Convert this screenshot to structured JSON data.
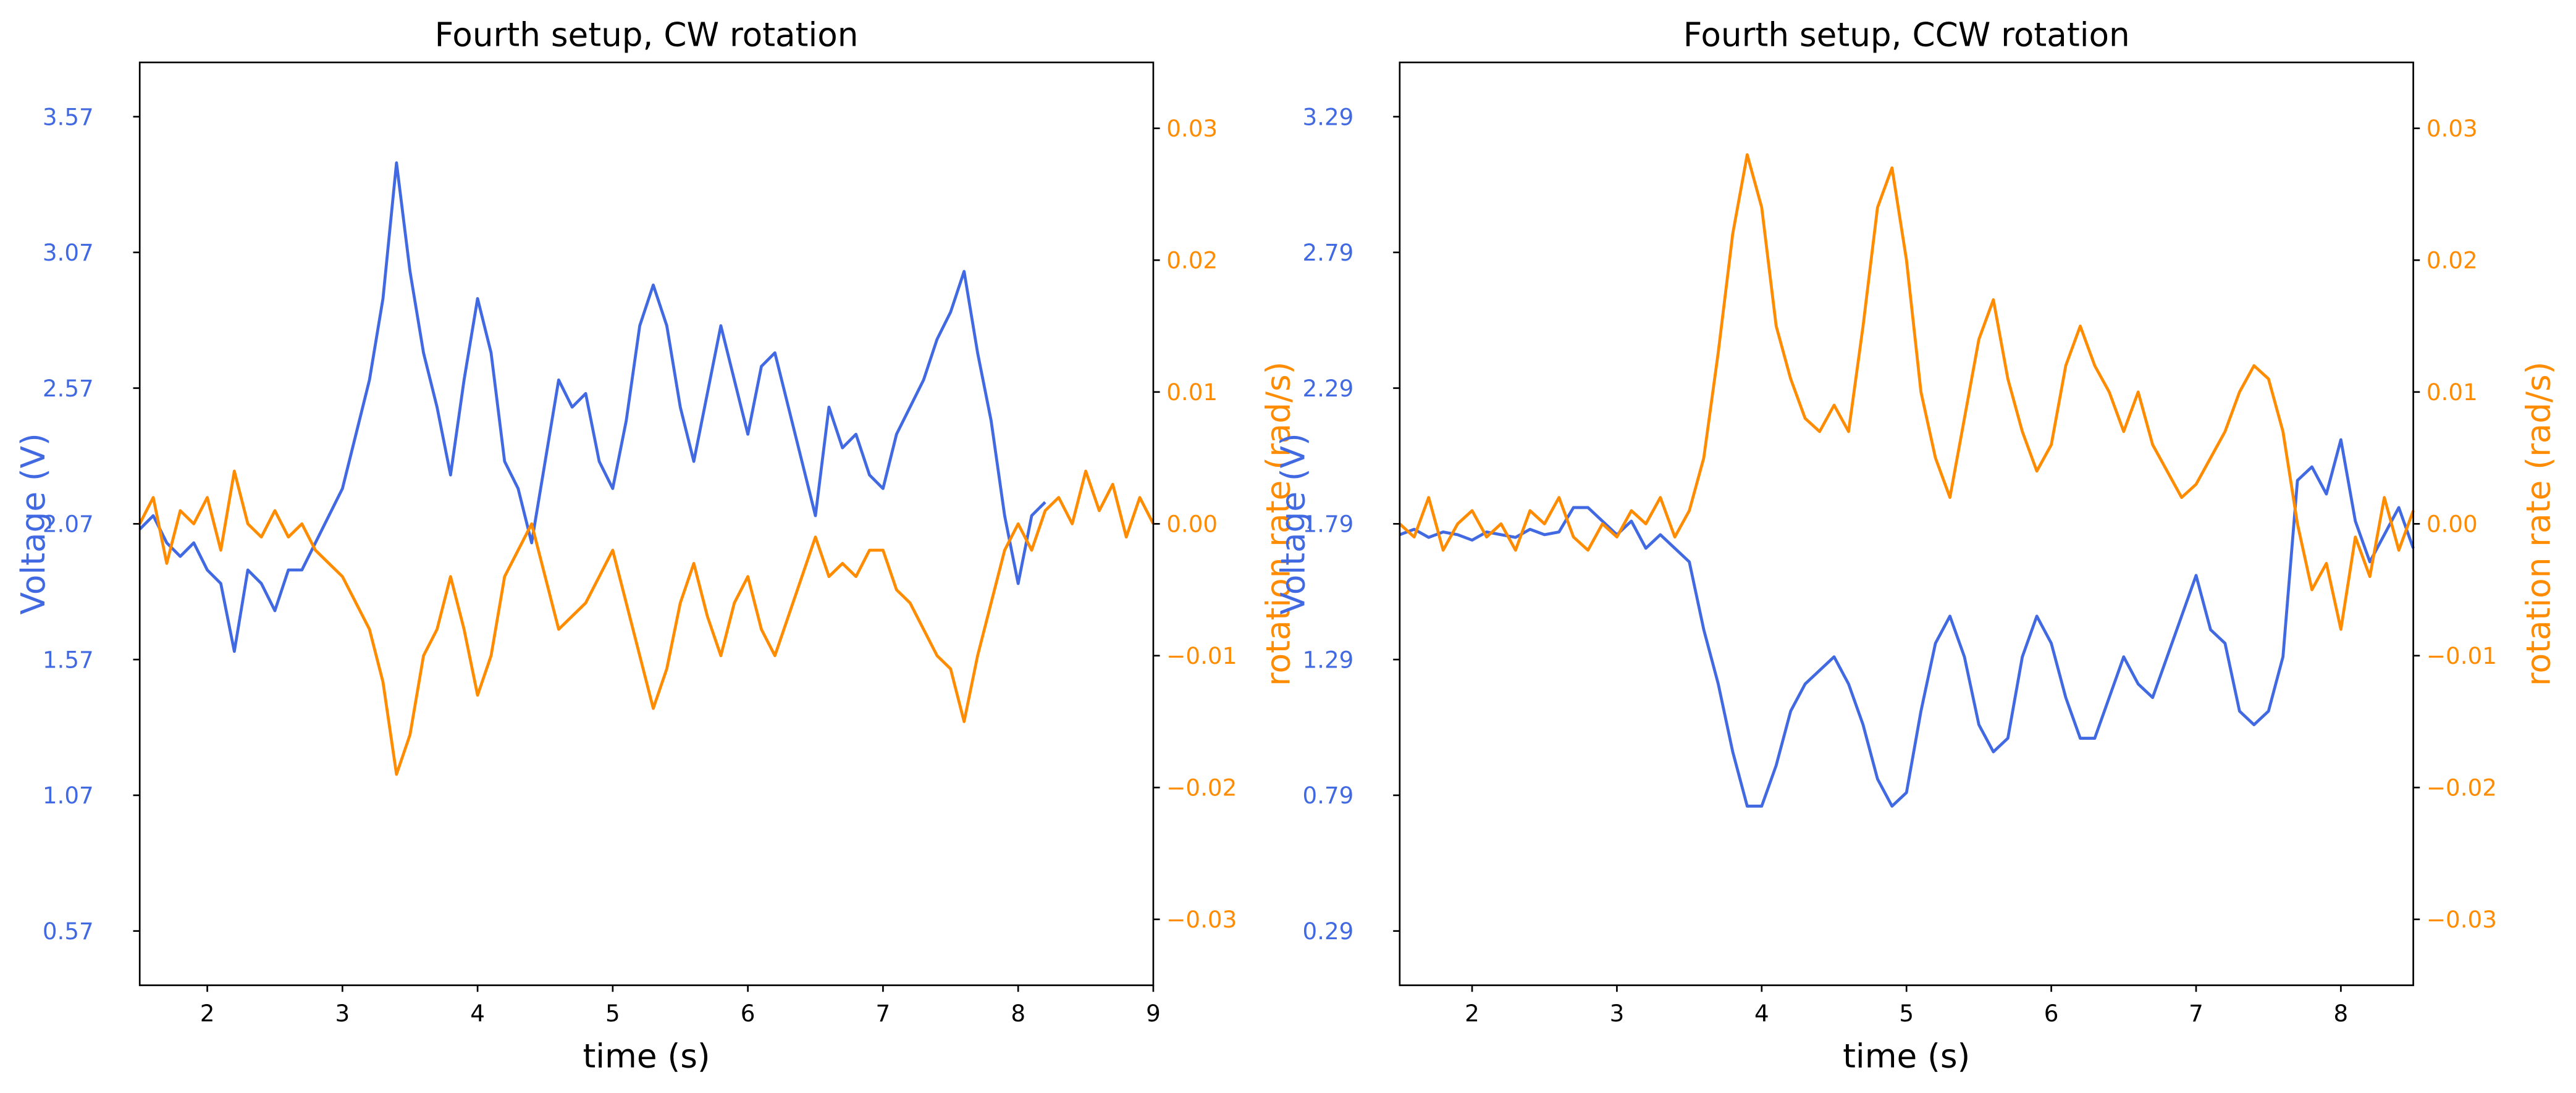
{
  "chart_data": [
    {
      "type": "line",
      "title": "Fourth setup, CW rotation",
      "xlabel": "time (s)",
      "ylabel": "Voltage (V)",
      "y2label": "rotation rate (rad/s)",
      "x": [
        1.5,
        1.6,
        1.7,
        1.8,
        1.9,
        2.0,
        2.1,
        2.2,
        2.3,
        2.4,
        2.5,
        2.6,
        2.7,
        2.8,
        2.9,
        3.0,
        3.1,
        3.2,
        3.3,
        3.4,
        3.5,
        3.6,
        3.7,
        3.8,
        3.9,
        4.0,
        4.1,
        4.2,
        4.3,
        4.4,
        4.5,
        4.6,
        4.7,
        4.8,
        4.9,
        5.0,
        5.1,
        5.2,
        5.3,
        5.4,
        5.5,
        5.6,
        5.7,
        5.8,
        5.9,
        6.0,
        6.1,
        6.2,
        6.3,
        6.4,
        6.5,
        6.6,
        6.7,
        6.8,
        6.9,
        7.0,
        7.1,
        7.2,
        7.3,
        7.4,
        7.5,
        7.6,
        7.7,
        7.8,
        7.9,
        8.0,
        8.1,
        8.2,
        8.3,
        8.4,
        8.5,
        8.6,
        8.7,
        8.8,
        8.9,
        9.0
      ],
      "series": [
        {
          "color": "#4169e1",
          "values": [
            2.05,
            2.1,
            2.0,
            1.95,
            2.0,
            1.9,
            1.85,
            1.6,
            1.9,
            1.85,
            1.75,
            1.9,
            1.9,
            2.0,
            2.1,
            2.2,
            2.4,
            2.6,
            2.9,
            3.4,
            3.0,
            2.7,
            2.5,
            2.25,
            2.6,
            2.9,
            2.7,
            2.3,
            2.2,
            2.0,
            2.3,
            2.6,
            2.5,
            2.55,
            2.3,
            2.2,
            2.45,
            2.8,
            2.95,
            2.8,
            2.5,
            2.3,
            2.55,
            2.8,
            2.6,
            2.4,
            2.65,
            2.7,
            2.5,
            2.3,
            2.1,
            2.5,
            2.35,
            2.4,
            2.25,
            2.2,
            2.4,
            2.5,
            2.6,
            2.75,
            2.85,
            3.0,
            2.7,
            2.45,
            2.1,
            1.85,
            2.1,
            2.15,
            null,
            null,
            null,
            null,
            null,
            null,
            null,
            null
          ]
        },
        {
          "color": "#ff8c00",
          "axis": "y2",
          "values": [
            0.0,
            0.002,
            -0.003,
            0.001,
            0.0,
            0.002,
            -0.002,
            0.004,
            0.0,
            -0.001,
            0.001,
            -0.001,
            0.0,
            -0.002,
            -0.003,
            -0.004,
            -0.006,
            -0.008,
            -0.012,
            -0.019,
            -0.016,
            -0.01,
            -0.008,
            -0.004,
            -0.008,
            -0.013,
            -0.01,
            -0.004,
            -0.002,
            0.0,
            -0.004,
            -0.008,
            -0.007,
            -0.006,
            -0.004,
            -0.002,
            -0.006,
            -0.01,
            -0.014,
            -0.011,
            -0.006,
            -0.003,
            -0.007,
            -0.01,
            -0.006,
            -0.004,
            -0.008,
            -0.01,
            -0.007,
            -0.004,
            -0.001,
            -0.004,
            -0.003,
            -0.004,
            -0.002,
            -0.002,
            -0.005,
            -0.006,
            -0.008,
            -0.01,
            -0.011,
            -0.015,
            -0.01,
            -0.006,
            -0.002,
            0.0,
            -0.002,
            0.001,
            0.002,
            0.0,
            0.004,
            0.001,
            0.003,
            -0.001,
            0.002,
            0.0
          ]
        }
      ],
      "xlim": [
        1.5,
        9
      ],
      "xticks": [
        2,
        3,
        4,
        5,
        6,
        7,
        8,
        9
      ],
      "ylim": [
        0.37,
        3.77
      ],
      "yticks": [
        0.57,
        1.07,
        1.57,
        2.07,
        2.57,
        3.07,
        3.57
      ],
      "y2lim": [
        -0.035,
        0.035
      ],
      "y2ticks": [
        {
          "value": -0.03,
          "label": "−0.03"
        },
        {
          "value": -0.02,
          "label": "−0.02"
        },
        {
          "value": -0.01,
          "label": "−0.01"
        },
        {
          "value": 0,
          "label": "0.00"
        },
        0.01,
        0.02,
        0.03
      ]
    },
    {
      "type": "line",
      "title": "Fourth setup, CCW rotation",
      "xlabel": "time (s)",
      "ylabel": "Voltage (V)",
      "y2label": "rotation rate (rad/s)",
      "x": [
        1.5,
        1.6,
        1.7,
        1.8,
        1.9,
        2.0,
        2.1,
        2.2,
        2.3,
        2.4,
        2.5,
        2.6,
        2.7,
        2.8,
        2.9,
        3.0,
        3.1,
        3.2,
        3.3,
        3.4,
        3.5,
        3.6,
        3.7,
        3.8,
        3.9,
        4.0,
        4.1,
        4.2,
        4.3,
        4.4,
        4.5,
        4.6,
        4.7,
        4.8,
        4.9,
        5.0,
        5.1,
        5.2,
        5.3,
        5.4,
        5.5,
        5.6,
        5.7,
        5.8,
        5.9,
        6.0,
        6.1,
        6.2,
        6.3,
        6.4,
        6.5,
        6.6,
        6.7,
        6.8,
        6.9,
        7.0,
        7.1,
        7.2,
        7.3,
        7.4,
        7.5,
        7.6,
        7.7,
        7.8,
        7.9,
        8.0,
        8.1,
        8.2,
        8.3,
        8.4,
        8.5
      ],
      "series": [
        {
          "color": "#4169e1",
          "values": [
            1.75,
            1.77,
            1.74,
            1.76,
            1.75,
            1.73,
            1.76,
            1.75,
            1.74,
            1.77,
            1.75,
            1.76,
            1.85,
            1.85,
            1.8,
            1.75,
            1.8,
            1.7,
            1.75,
            1.7,
            1.65,
            1.4,
            1.2,
            0.95,
            0.75,
            0.75,
            0.9,
            1.1,
            1.2,
            1.25,
            1.3,
            1.2,
            1.05,
            0.85,
            0.75,
            0.8,
            1.1,
            1.35,
            1.45,
            1.3,
            1.05,
            0.95,
            1.0,
            1.3,
            1.45,
            1.35,
            1.15,
            1.0,
            1.0,
            1.15,
            1.3,
            1.2,
            1.15,
            1.3,
            1.45,
            1.6,
            1.4,
            1.35,
            1.1,
            1.05,
            1.1,
            1.3,
            1.95,
            2.0,
            1.9,
            2.1,
            1.8,
            1.65,
            1.75,
            1.85,
            1.7
          ]
        },
        {
          "color": "#ff8c00",
          "axis": "y2",
          "values": [
            0.0,
            -0.001,
            0.002,
            -0.002,
            0.0,
            0.001,
            -0.001,
            0.0,
            -0.002,
            0.001,
            0.0,
            0.002,
            -0.001,
            -0.002,
            0.0,
            -0.001,
            0.001,
            0.0,
            0.002,
            -0.001,
            0.001,
            0.005,
            0.013,
            0.022,
            0.028,
            0.024,
            0.015,
            0.011,
            0.008,
            0.007,
            0.009,
            0.007,
            0.015,
            0.024,
            0.027,
            0.02,
            0.01,
            0.005,
            0.002,
            0.008,
            0.014,
            0.017,
            0.011,
            0.007,
            0.004,
            0.006,
            0.012,
            0.015,
            0.012,
            0.01,
            0.007,
            0.01,
            0.006,
            0.004,
            0.002,
            0.003,
            0.005,
            0.007,
            0.01,
            0.012,
            0.011,
            0.007,
            0.0,
            -0.005,
            -0.003,
            -0.008,
            -0.001,
            -0.004,
            0.002,
            -0.002,
            0.001
          ]
        }
      ],
      "xlim": [
        1.5,
        8.5
      ],
      "xticks": [
        2,
        3,
        4,
        5,
        6,
        7,
        8
      ],
      "ylim": [
        0.09,
        3.49
      ],
      "yticks": [
        0.29,
        0.79,
        1.29,
        1.79,
        2.29,
        2.79,
        3.29
      ],
      "y2lim": [
        -0.035,
        0.035
      ],
      "y2ticks": [
        {
          "value": -0.03,
          "label": "−0.03"
        },
        {
          "value": -0.02,
          "label": "−0.02"
        },
        {
          "value": -0.01,
          "label": "−0.01"
        },
        {
          "value": 0,
          "label": "0.00"
        },
        0.01,
        0.02,
        0.03
      ]
    }
  ]
}
